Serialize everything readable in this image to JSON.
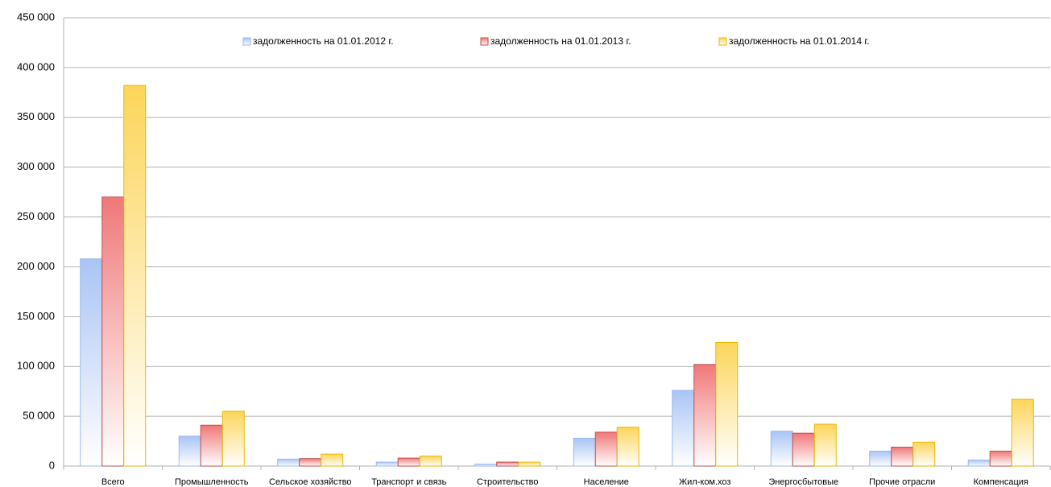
{
  "chart_data": {
    "type": "bar",
    "categories": [
      "Всего",
      "Промышленность",
      "Сельское хозяйство",
      "Транспорт и связь",
      "Строительство",
      "Население",
      "Жил-ком.хоз",
      "Энергосбытовые",
      "Прочие отрасли",
      "Компенсация"
    ],
    "series": [
      {
        "name": "задолженность на 01.01.2012 г.",
        "color": "#a9c4f5",
        "values": [
          208000,
          30000,
          7000,
          4000,
          2000,
          28000,
          76000,
          35000,
          15000,
          6000
        ]
      },
      {
        "name": "задолженность на 01.01.2013 г.",
        "color": "#f07878",
        "values": [
          270000,
          41000,
          7500,
          8000,
          4000,
          34000,
          102000,
          33000,
          19000,
          15000
        ]
      },
      {
        "name": "задолженность на 01.01.2014 г.",
        "color": "#fcd55a",
        "values": [
          382000,
          55000,
          12000,
          10000,
          4000,
          39000,
          124000,
          42000,
          24000,
          67000
        ]
      }
    ],
    "ylim": [
      0,
      450000
    ],
    "yticks": [
      0,
      {
        "value": 50000,
        "label": "50 000"
      },
      {
        "value": 100000,
        "label": "100 000"
      },
      {
        "value": 150000,
        "label": "150 000"
      },
      {
        "value": 200000,
        "label": "200 000"
      },
      {
        "value": 250000,
        "label": "250 000"
      },
      {
        "value": 300000,
        "label": "300 000"
      },
      {
        "value": 350000,
        "label": "350 000"
      },
      {
        "value": 400000,
        "label": "400 000"
      },
      {
        "value": 450000,
        "label": "450 000"
      }
    ],
    "grid": true,
    "legend": "top"
  }
}
